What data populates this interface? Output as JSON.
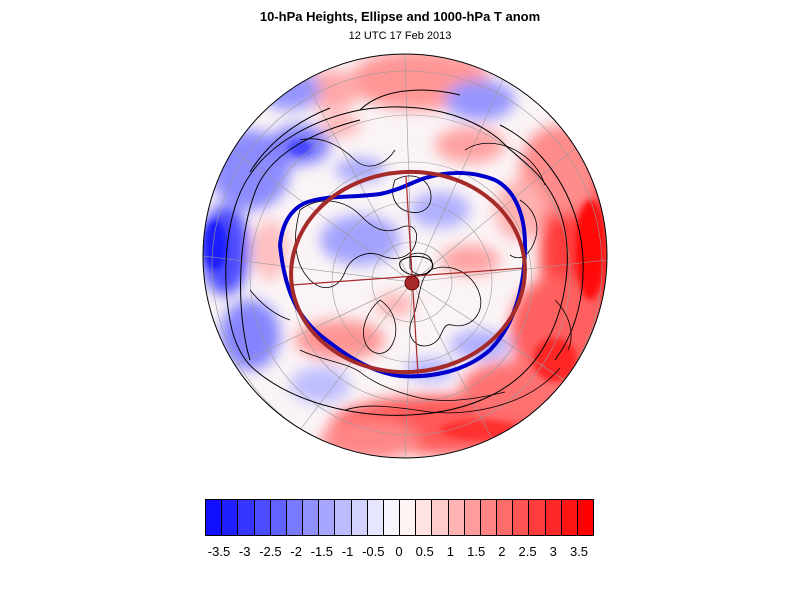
{
  "title": "10-hPa Heights, Ellipse and 1000-hPa T anom",
  "subtitle": "12 UTC 17 Feb 2013",
  "colorbar": {
    "labels": [
      "-3.5",
      "-3",
      "-2.5",
      "-2",
      "-1.5",
      "-1",
      "-0.5",
      "0",
      "0.5",
      "1",
      "1.5",
      "2",
      "2.5",
      "3",
      "3.5"
    ],
    "colors": [
      "#1010ff",
      "#2020ff",
      "#3535ff",
      "#4c4cff",
      "#6262ff",
      "#7a7aff",
      "#9090ff",
      "#a6a6ff",
      "#bcbcff",
      "#d2d2ff",
      "#e6e6ff",
      "#f6f6ff",
      "#fff4f4",
      "#ffe2e2",
      "#ffcccc",
      "#ffb4b4",
      "#ff9c9c",
      "#ff8484",
      "#ff6c6c",
      "#ff5454",
      "#ff3c3c",
      "#ff2828",
      "#ff1414",
      "#ff0000"
    ]
  },
  "map": {
    "projection": "north-polar-orthographic",
    "overlays": [
      "temperature-anomaly-shading",
      "10-hPa-height-contours",
      "polar-vortex-contour",
      "fitted-ellipse",
      "coastlines",
      "graticule"
    ],
    "colors": {
      "vortex_contour": "#0000cc",
      "ellipse": "#a52a2a",
      "height_contour": "#000000",
      "coastline": "#000000",
      "graticule": "#9a9a9a"
    }
  }
}
